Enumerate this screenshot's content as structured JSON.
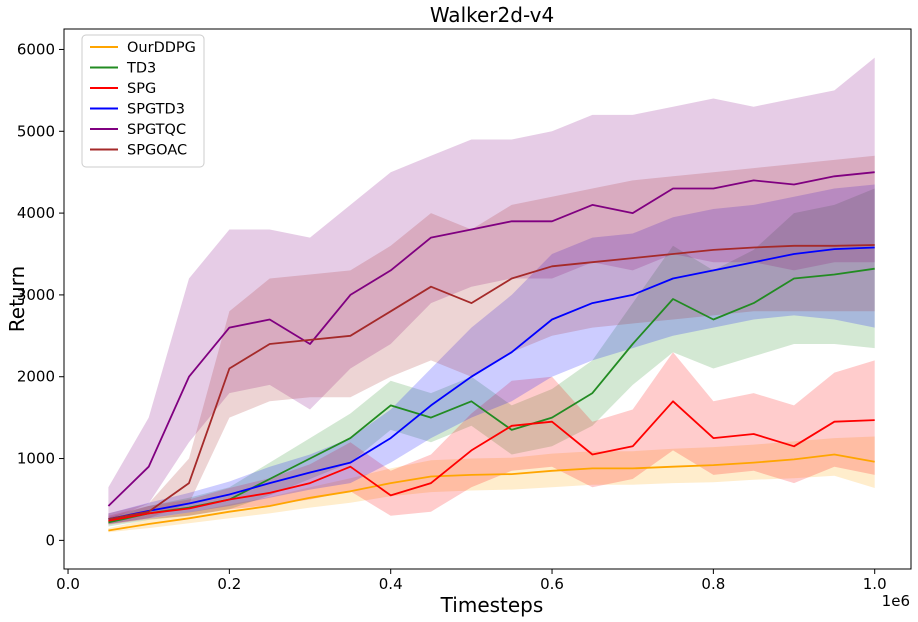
{
  "chart_data": {
    "type": "line",
    "title": "Walker2d-v4",
    "xlabel": "Timesteps",
    "ylabel": "Return",
    "x_offset_label": "1e6",
    "xlim": [
      -0.005,
      1.045
    ],
    "ylim": [
      -350,
      6250
    ],
    "xticks": [
      0.0,
      0.2,
      0.4,
      0.6,
      0.8,
      1.0
    ],
    "xtick_labels": [
      "0.0",
      "0.2",
      "0.4",
      "0.6",
      "0.8",
      "1.0"
    ],
    "yticks": [
      0,
      1000,
      2000,
      3000,
      4000,
      5000,
      6000
    ],
    "ytick_labels": [
      "0",
      "1000",
      "2000",
      "3000",
      "4000",
      "5000",
      "6000"
    ],
    "grid": false,
    "legend_position": "top-left",
    "band": "shaded region shows variability across seeds",
    "x": [
      0.05,
      0.1,
      0.15,
      0.2,
      0.25,
      0.3,
      0.35,
      0.4,
      0.45,
      0.5,
      0.55,
      0.6,
      0.65,
      0.7,
      0.75,
      0.8,
      0.85,
      0.9,
      0.95,
      1.0
    ],
    "series": [
      {
        "name": "OurDDPG",
        "color": "#ffa500",
        "values": [
          120,
          200,
          270,
          350,
          420,
          520,
          600,
          700,
          780,
          800,
          810,
          850,
          880,
          880,
          900,
          920,
          950,
          990,
          1050,
          960
        ],
        "lower": [
          100,
          150,
          210,
          270,
          330,
          400,
          460,
          540,
          590,
          610,
          620,
          650,
          680,
          680,
          700,
          710,
          740,
          760,
          790,
          640
        ],
        "upper": [
          150,
          260,
          340,
          440,
          530,
          650,
          760,
          880,
          980,
          1000,
          1010,
          1060,
          1090,
          1090,
          1120,
          1140,
          1170,
          1210,
          1250,
          1270
        ]
      },
      {
        "name": "TD3",
        "color": "#228b22",
        "values": [
          220,
          330,
          400,
          500,
          750,
          1000,
          1250,
          1650,
          1500,
          1700,
          1350,
          1500,
          1800,
          2400,
          2950,
          2700,
          2900,
          3200,
          3250,
          3320
        ],
        "lower": [
          170,
          250,
          300,
          380,
          550,
          750,
          950,
          1350,
          1200,
          1400,
          1050,
          1150,
          1400,
          1900,
          2300,
          2100,
          2250,
          2400,
          2400,
          2350
        ],
        "upper": [
          280,
          420,
          520,
          650,
          950,
          1250,
          1550,
          1950,
          1800,
          2000,
          1650,
          1850,
          2200,
          2900,
          3600,
          3300,
          3550,
          4000,
          4100,
          4300
        ]
      },
      {
        "name": "SPG",
        "color": "#ff0000",
        "values": [
          240,
          330,
          390,
          500,
          580,
          700,
          900,
          550,
          700,
          1100,
          1400,
          1450,
          1050,
          1150,
          1700,
          1250,
          1300,
          1150,
          1450,
          1470
        ],
        "lower": [
          190,
          260,
          300,
          380,
          430,
          500,
          600,
          300,
          350,
          650,
          850,
          900,
          650,
          750,
          1100,
          800,
          850,
          700,
          900,
          800
        ],
        "upper": [
          300,
          420,
          500,
          640,
          760,
          930,
          1200,
          850,
          1050,
          1550,
          1950,
          2000,
          1450,
          1600,
          2300,
          1700,
          1800,
          1650,
          2050,
          2200
        ]
      },
      {
        "name": "SPGTD3",
        "color": "#0000ff",
        "values": [
          260,
          360,
          450,
          560,
          700,
          830,
          950,
          1250,
          1650,
          2000,
          2300,
          2700,
          2900,
          3000,
          3200,
          3300,
          3400,
          3500,
          3560,
          3580
        ],
        "lower": [
          200,
          270,
          340,
          420,
          520,
          620,
          700,
          950,
          1250,
          1500,
          1700,
          2000,
          2200,
          2350,
          2500,
          2600,
          2700,
          2750,
          2700,
          2600
        ],
        "upper": [
          330,
          460,
          580,
          720,
          900,
          1050,
          1250,
          1600,
          2100,
          2600,
          3000,
          3500,
          3700,
          3750,
          3950,
          4050,
          4100,
          4200,
          4300,
          4350
        ]
      },
      {
        "name": "SPGTQC",
        "color": "#800080",
        "values": [
          420,
          900,
          2000,
          2600,
          2700,
          2400,
          3000,
          3300,
          3700,
          3800,
          3900,
          3900,
          4100,
          4000,
          4300,
          4300,
          4400,
          4350,
          4450,
          4500
        ],
        "lower": [
          250,
          450,
          1200,
          1800,
          1900,
          1600,
          2100,
          2400,
          2900,
          3100,
          3200,
          3200,
          3400,
          3300,
          3500,
          3400,
          3400,
          3300,
          3400,
          3400
        ],
        "upper": [
          650,
          1500,
          3200,
          3800,
          3800,
          3700,
          4100,
          4500,
          4700,
          4900,
          4900,
          5000,
          5200,
          5200,
          5300,
          5400,
          5300,
          5400,
          5500,
          5900
        ]
      },
      {
        "name": "SPGOAC",
        "color": "#a52a2a",
        "values": [
          260,
          350,
          700,
          2100,
          2400,
          2450,
          2500,
          2800,
          3100,
          2900,
          3200,
          3350,
          3400,
          3450,
          3500,
          3550,
          3580,
          3600,
          3600,
          3610
        ],
        "lower": [
          200,
          270,
          450,
          1500,
          1700,
          1750,
          1750,
          2000,
          2200,
          2000,
          2300,
          2500,
          2600,
          2650,
          2700,
          2750,
          2800,
          2800,
          2800,
          2800
        ],
        "upper": [
          330,
          450,
          1000,
          2800,
          3200,
          3250,
          3300,
          3600,
          4000,
          3800,
          4100,
          4200,
          4300,
          4400,
          4450,
          4500,
          4550,
          4600,
          4650,
          4700
        ]
      }
    ]
  }
}
